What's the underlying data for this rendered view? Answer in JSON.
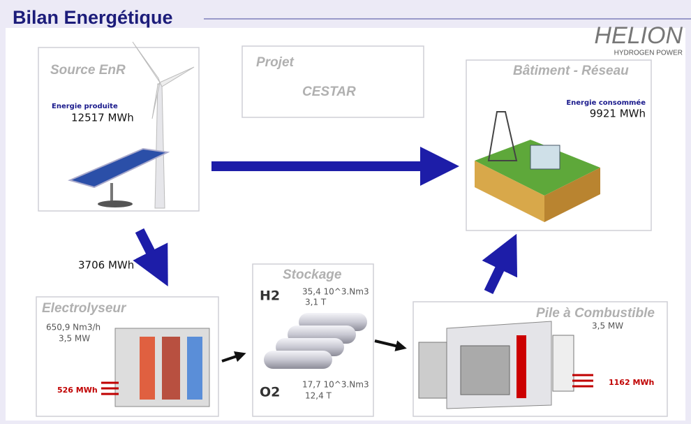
{
  "header": {
    "title": "Bilan Energétique",
    "logo": "HELION",
    "logo_sub": "HYDROGEN POWER"
  },
  "project": {
    "label": "Projet",
    "name": "CESTAR"
  },
  "source": {
    "title": "Source EnR",
    "label": "Energie produite",
    "value": "12517  MWh"
  },
  "building": {
    "title": "Bâtiment - Réseau",
    "label": "Energie consommée",
    "value": "9921  MWh"
  },
  "flow": {
    "to_electrolyser": "3706  MWh"
  },
  "electrolyser": {
    "title": "Electrolyseur",
    "flow": "650,9  Nm3/h",
    "power": "3,5  MW",
    "heat": "526  MWh"
  },
  "storage": {
    "title": "Stockage",
    "h2": {
      "label": "H2",
      "volume": "35,4  10^3.Nm3",
      "mass": "3,1  T"
    },
    "o2": {
      "label": "O2",
      "volume": "17,7  10^3.Nm3",
      "mass": "12,4  T"
    }
  },
  "fuel_cell": {
    "title": "Pile à Combustible",
    "power": "3,5  MW",
    "heat": "1162  MWh"
  }
}
